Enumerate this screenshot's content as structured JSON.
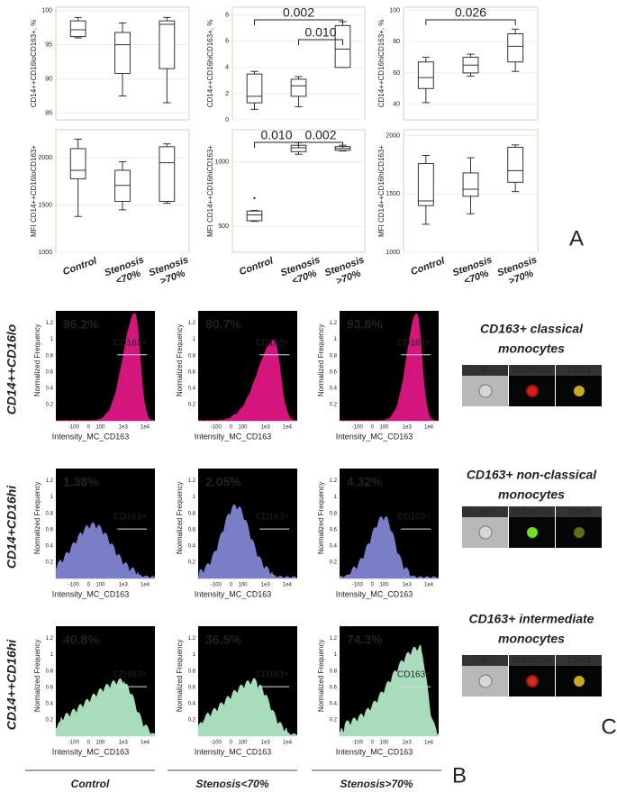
{
  "chart_data": [
    {
      "type": "box",
      "y_label": "CD14++CD16loCD163+, %",
      "ylim": [
        84,
        100.5
      ],
      "yticks": [
        85,
        90,
        95,
        100
      ],
      "boxes": [
        {
          "whisker_low": 96,
          "q1": 96.2,
          "median": 97.2,
          "q3": 98.5,
          "whisker_high": 99
        },
        {
          "whisker_low": 87.5,
          "q1": 90.8,
          "median": 95,
          "q3": 96.8,
          "whisker_high": 98.2
        },
        {
          "whisker_low": 86.5,
          "q1": 91.5,
          "median": 98,
          "q3": 98.5,
          "whisker_high": 99
        }
      ]
    },
    {
      "type": "box",
      "y_label": "CD14++CD16hiCD163+, %",
      "ylim": [
        0,
        8.6
      ],
      "yticks": [
        0,
        2,
        4,
        6,
        8
      ],
      "boxes": [
        {
          "whisker_low": 0.8,
          "q1": 1.3,
          "median": 1.8,
          "q3": 3.5,
          "whisker_high": 3.7
        },
        {
          "whisker_low": 1,
          "q1": 1.8,
          "median": 2.6,
          "q3": 3.1,
          "whisker_high": 3.3
        },
        {
          "whisker_low": 4,
          "q1": 4,
          "median": 5.4,
          "q3": 7.2,
          "whisker_high": 7.5
        }
      ],
      "annotations": [
        {
          "text": "0.002",
          "from": 0,
          "to": 2
        },
        {
          "text": "0.010",
          "from": 1,
          "to": 2
        }
      ]
    },
    {
      "type": "box",
      "y_label": "CD14++CD16hiCD163+, %",
      "ylim": [
        30,
        102
      ],
      "yticks": [
        40,
        60,
        80,
        100
      ],
      "boxes": [
        {
          "whisker_low": 41,
          "q1": 50,
          "median": 57,
          "q3": 67,
          "whisker_high": 70
        },
        {
          "whisker_low": 58,
          "q1": 60,
          "median": 65,
          "q3": 70,
          "whisker_high": 72
        },
        {
          "whisker_low": 61,
          "q1": 67,
          "median": 77,
          "q3": 85,
          "whisker_high": 88
        }
      ],
      "annotations": [
        {
          "text": "0.026",
          "from": 0,
          "to": 2
        }
      ]
    },
    {
      "type": "box",
      "y_label": "MFI CD14++CD16loCD163+",
      "ylim": [
        1000,
        2300
      ],
      "yticks": [
        1000,
        1500,
        2000
      ],
      "categories": [
        [
          "Control"
        ],
        [
          "Stenosis",
          "<70%"
        ],
        [
          "Stenosis",
          ">70%"
        ]
      ],
      "boxes": [
        {
          "whisker_low": 1380,
          "q1": 1780,
          "median": 1870,
          "q3": 2100,
          "whisker_high": 2200
        },
        {
          "whisker_low": 1450,
          "q1": 1540,
          "median": 1710,
          "q3": 1870,
          "whisker_high": 1960
        },
        {
          "whisker_low": 1520,
          "q1": 1540,
          "median": 1950,
          "q3": 2120,
          "whisker_high": 2150
        }
      ]
    },
    {
      "type": "box",
      "y_label": "MFI CD14++CD16hiCD163+",
      "ylim": [
        300,
        1250
      ],
      "yticks": [
        500,
        1000
      ],
      "categories": [
        [
          "Control"
        ],
        [
          "Stenosis",
          "<70%"
        ],
        [
          "Stenosis",
          ">70%"
        ]
      ],
      "boxes": [
        {
          "whisker_low": 540,
          "q1": 545,
          "median": 590,
          "q3": 620,
          "whisker_high": 625,
          "outliers": [
            720
          ]
        },
        {
          "whisker_low": 1060,
          "q1": 1080,
          "median": 1110,
          "q3": 1130,
          "whisker_high": 1150
        },
        {
          "whisker_low": 1085,
          "q1": 1090,
          "median": 1105,
          "q3": 1120,
          "whisker_high": 1130
        }
      ],
      "annotations": [
        {
          "text": "0.010",
          "from": 0,
          "to": 1
        },
        {
          "text": "0.002",
          "from": 1,
          "to": 2
        }
      ]
    },
    {
      "type": "box",
      "y_label": "MFI CD14++CD16hiCD163+",
      "ylim": [
        1000,
        2050
      ],
      "yticks": [
        1000,
        1500,
        2000
      ],
      "categories": [
        [
          "Control"
        ],
        [
          "Stenosis",
          "<70%"
        ],
        [
          "Stenosis",
          ">70%"
        ]
      ],
      "boxes": [
        {
          "whisker_low": 1240,
          "q1": 1400,
          "median": 1440,
          "q3": 1760,
          "whisker_high": 1830
        },
        {
          "whisker_low": 1330,
          "q1": 1480,
          "median": 1540,
          "q3": 1680,
          "whisker_high": 1810
        },
        {
          "whisker_low": 1520,
          "q1": 1600,
          "median": 1700,
          "q3": 1900,
          "whisker_high": 1920
        }
      ]
    }
  ],
  "panel_labels": [
    "A",
    "B",
    "C"
  ],
  "flow": {
    "rows": [
      {
        "label": "CD14++CD16lo",
        "percents": [
          "96.2%",
          "80.7%",
          "93.8%"
        ]
      },
      {
        "label": "CD14+CD16hi",
        "percents": [
          "1.38%",
          "2.05%",
          "4.32%"
        ]
      },
      {
        "label": "CD14++CD16hi",
        "percents": [
          "40.8%",
          "36.5%",
          "74.3%"
        ]
      }
    ],
    "columns": [
      "Control",
      "Stenosis<70%",
      "Stenosis>70%"
    ],
    "gate_label": "CD163+",
    "x_label": "Intensity_MC_CD163",
    "y_label": "Normalized Frequency",
    "xticks": [
      "-100",
      "0",
      "100",
      "1e3",
      "1e4"
    ],
    "yticks": [
      "0.2",
      "0.4",
      "0.6",
      "0.8",
      "1",
      "1.2"
    ]
  },
  "cell_images": [
    {
      "title": [
        "CD163+ classical",
        "monocytes"
      ],
      "channels": [
        "BF",
        "CD14/CD16",
        "CD163"
      ]
    },
    {
      "title": [
        "CD163+ non-classical",
        "monocytes"
      ],
      "channels": [
        "BF",
        "CD14/CD16",
        "CD163"
      ]
    },
    {
      "title": [
        "CD163+ intermediate",
        "monocytes"
      ],
      "channels": [
        "BF",
        "CD14/CD16",
        "CD163"
      ]
    }
  ]
}
